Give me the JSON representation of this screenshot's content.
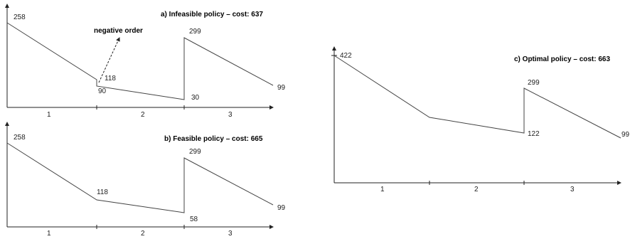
{
  "panel_a": {
    "title": "a) Infeasible policy – cost: 637",
    "annotation": "negative order",
    "values": {
      "start": "258",
      "end1": "90",
      "after_order": "118",
      "end2": "30",
      "peak": "299",
      "end3": "99"
    },
    "periods": [
      "1",
      "2",
      "3"
    ]
  },
  "panel_b": {
    "title": "b) Feasible policy – cost: 665",
    "values": {
      "start": "258",
      "end1": "118",
      "end2": "58",
      "peak": "299",
      "end3": "99"
    },
    "periods": [
      "1",
      "2",
      "3"
    ]
  },
  "panel_c": {
    "title": "c) Optimal policy – cost: 663",
    "values": {
      "start": "422",
      "end2": "122",
      "peak": "299",
      "end3": "99"
    },
    "periods": [
      "1",
      "2",
      "3"
    ]
  }
}
